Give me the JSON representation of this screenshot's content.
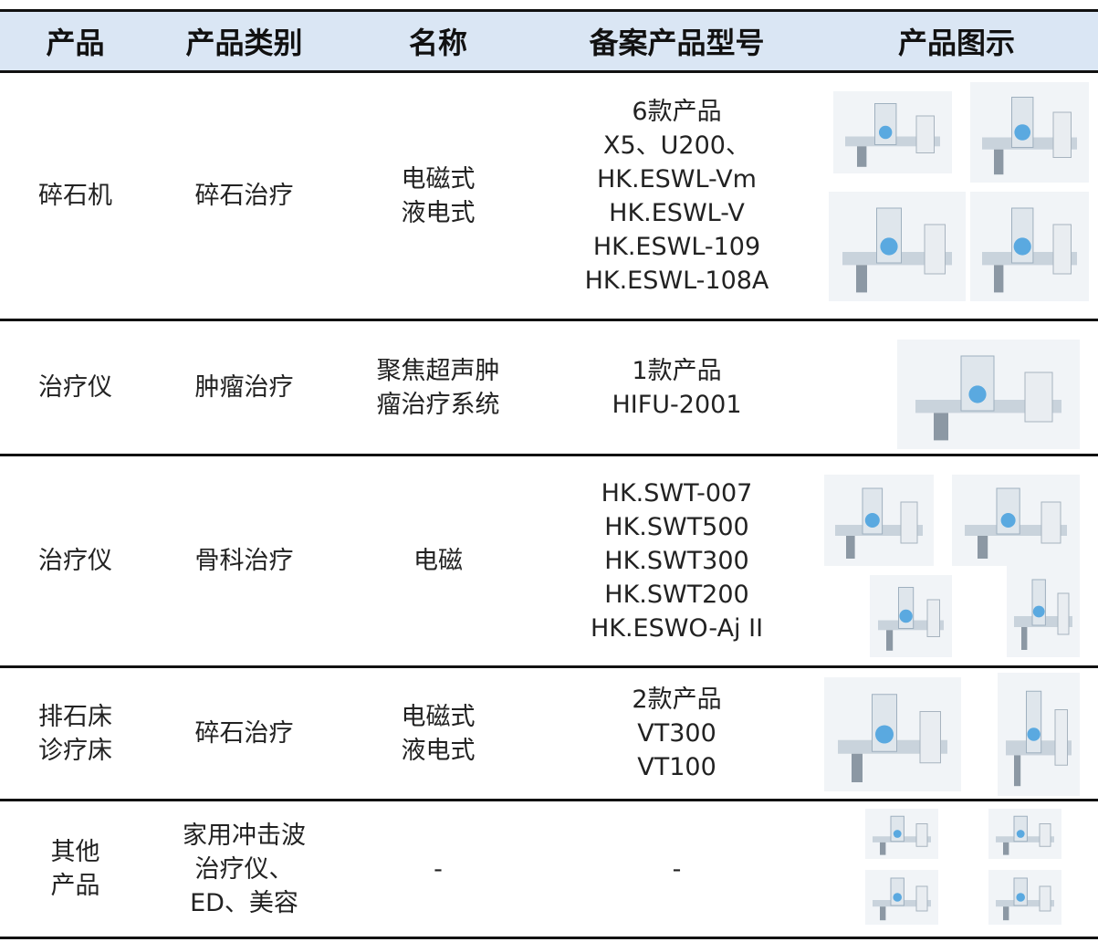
{
  "table": {
    "header": [
      "产品",
      "产品类别",
      "名称",
      "备案产品型号",
      "产品图示"
    ],
    "rows": [
      [
        [
          "碎石机"
        ],
        [
          "碎石治疗"
        ],
        [
          "电磁式",
          "液电式"
        ],
        [
          "6款产品",
          "X5、U200、",
          "HK.ESWL-Vm",
          "HK.ESWL-V",
          "HK.ESWL-109",
          "HK.ESWL-108A"
        ]
      ],
      [
        [
          "治疗仪"
        ],
        [
          "肿瘤治疗"
        ],
        [
          "聚焦超声肿",
          "瘤治疗系统"
        ],
        [
          "1款产品",
          "HIFU-2001"
        ]
      ],
      [
        [
          "治疗仪"
        ],
        [
          "骨科治疗"
        ],
        [
          "电磁"
        ],
        [
          "HK.SWT-007",
          "HK.SWT500",
          "HK.SWT300",
          "HK.SWT200",
          "HK.ESWO-Aj II"
        ]
      ],
      [
        [
          "排石床",
          "诊疗床"
        ],
        [
          "碎石治疗"
        ],
        [
          "电磁式",
          "液电式"
        ],
        [
          "2款产品",
          "VT300",
          "VT100"
        ]
      ],
      [
        [
          "其他",
          "产品"
        ],
        [
          "家用冲击波",
          "治疗仪、",
          "ED、美容"
        ],
        [
          "-"
        ],
        [
          "-"
        ]
      ]
    ]
  }
}
